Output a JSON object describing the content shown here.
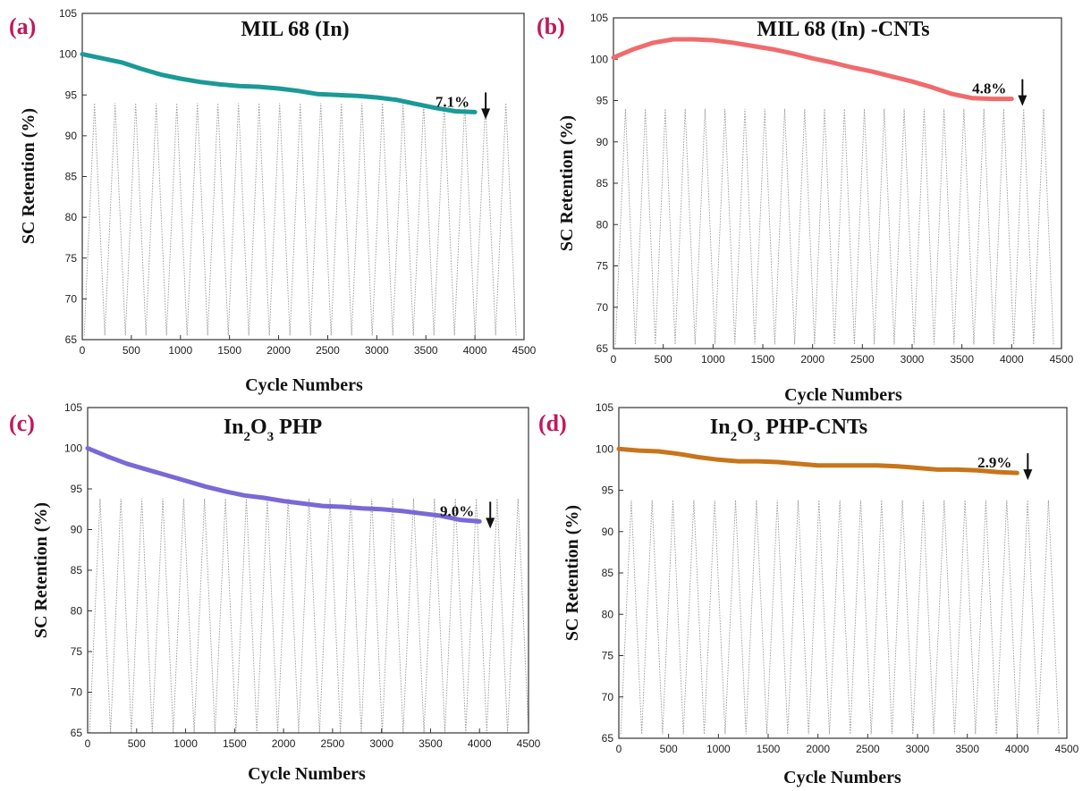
{
  "figure": {
    "panel_label_color": "#c2185b",
    "gcd_color": "#9a9a9a"
  },
  "chart_data": [
    {
      "type": "line",
      "panel_label": "(a)",
      "title": "MIL 68 (In)",
      "title_sub": "",
      "title_suffix": "",
      "xlabel": "Cycle Numbers",
      "ylabel": "SC Retention (%)",
      "xlim": [
        0,
        4500
      ],
      "ylim": [
        65,
        105
      ],
      "xticks": [
        0,
        500,
        1000,
        1500,
        2000,
        2500,
        3000,
        3500,
        4000,
        4500
      ],
      "yticks": [
        65,
        70,
        75,
        80,
        85,
        90,
        95,
        100,
        105
      ],
      "grid": false,
      "series": [
        {
          "color": "#1a9a96",
          "x": [
            0,
            200,
            400,
            600,
            800,
            1000,
            1200,
            1400,
            1600,
            1800,
            2000,
            2200,
            2400,
            2600,
            2800,
            3000,
            3200,
            3400,
            3600,
            3800,
            4000
          ],
          "y": [
            100.0,
            99.5,
            99.0,
            98.2,
            97.5,
            97.0,
            96.6,
            96.3,
            96.1,
            96.0,
            95.8,
            95.5,
            95.1,
            95.0,
            94.9,
            94.7,
            94.4,
            93.9,
            93.4,
            93.0,
            92.9
          ]
        }
      ],
      "annotation": {
        "text": "7.1%",
        "x": 4000,
        "y": 92.9
      },
      "gcd": {
        "cycles": 21,
        "x_start": 20,
        "x_end": 4420,
        "y_low": 65.5,
        "y_high": 94
      }
    },
    {
      "type": "line",
      "panel_label": "(b)",
      "title": "MIL 68 (In) -CNTs",
      "title_sub": "",
      "title_suffix": "",
      "xlabel": "Cycle Numbers",
      "ylabel": "SC Retention (%)",
      "xlim": [
        0,
        4500
      ],
      "ylim": [
        65,
        105
      ],
      "xticks": [
        0,
        500,
        1000,
        1500,
        2000,
        2500,
        3000,
        3500,
        4000,
        4500
      ],
      "yticks": [
        65,
        70,
        75,
        80,
        85,
        90,
        95,
        100,
        105
      ],
      "grid": false,
      "series": [
        {
          "color": "#f06b6b",
          "x": [
            0,
            200,
            400,
            600,
            800,
            1000,
            1200,
            1400,
            1600,
            1800,
            2000,
            2200,
            2400,
            2600,
            2800,
            3000,
            3200,
            3400,
            3600,
            3800,
            4000
          ],
          "y": [
            100.2,
            101.2,
            102.0,
            102.4,
            102.4,
            102.3,
            102.0,
            101.6,
            101.2,
            100.7,
            100.1,
            99.6,
            99.0,
            98.5,
            97.9,
            97.3,
            96.6,
            95.8,
            95.3,
            95.2,
            95.2
          ]
        }
      ],
      "annotation": {
        "text": "4.8%",
        "x": 4000,
        "y": 95.2
      },
      "gcd": {
        "cycles": 22,
        "x_start": 20,
        "x_end": 4420,
        "y_low": 65.5,
        "y_high": 94
      }
    },
    {
      "type": "line",
      "panel_label": "(c)",
      "title": "In",
      "title_sub": "2",
      "title_mid": "O",
      "title_sub2": "3",
      "title_suffix": " PHP",
      "xlabel": "Cycle Numbers",
      "ylabel": "SC Retention (%)",
      "xlim": [
        0,
        4500
      ],
      "ylim": [
        65,
        105
      ],
      "xticks": [
        0,
        500,
        1000,
        1500,
        2000,
        2500,
        3000,
        3500,
        4000,
        4500
      ],
      "yticks": [
        65,
        70,
        75,
        80,
        85,
        90,
        95,
        100,
        105
      ],
      "grid": false,
      "series": [
        {
          "color": "#7b68d6",
          "x": [
            0,
            200,
            400,
            600,
            800,
            1000,
            1200,
            1400,
            1600,
            1800,
            2000,
            2200,
            2400,
            2600,
            2800,
            3000,
            3200,
            3400,
            3600,
            3800,
            4000
          ],
          "y": [
            100.0,
            99.0,
            98.1,
            97.4,
            96.7,
            96.0,
            95.3,
            94.7,
            94.2,
            93.9,
            93.5,
            93.2,
            92.9,
            92.8,
            92.6,
            92.5,
            92.3,
            92.0,
            91.7,
            91.2,
            91.0
          ]
        }
      ],
      "annotation": {
        "text": "9.0%",
        "x": 4000,
        "y": 91.0
      },
      "gcd": {
        "cycles": 21,
        "x_start": 20,
        "x_end": 4500,
        "y_low": 65,
        "y_high": 93.8
      }
    },
    {
      "type": "line",
      "panel_label": "(d)",
      "title": "In",
      "title_sub": "2",
      "title_mid": "O",
      "title_sub2": "3",
      "title_suffix": " PHP-CNTs",
      "xlabel": "Cycle Numbers",
      "ylabel": "SC Retention (%)",
      "xlim": [
        0,
        4500
      ],
      "ylim": [
        65,
        105
      ],
      "xticks": [
        0,
        500,
        1000,
        1500,
        2000,
        2500,
        3000,
        3500,
        4000,
        4500
      ],
      "yticks": [
        65,
        70,
        75,
        80,
        85,
        90,
        95,
        100,
        105
      ],
      "grid": false,
      "series": [
        {
          "color": "#c8741a",
          "x": [
            0,
            200,
            400,
            600,
            800,
            1000,
            1200,
            1400,
            1600,
            1800,
            2000,
            2200,
            2400,
            2600,
            2800,
            3000,
            3200,
            3400,
            3600,
            3800,
            4000
          ],
          "y": [
            100.0,
            99.8,
            99.7,
            99.4,
            99.0,
            98.7,
            98.5,
            98.5,
            98.4,
            98.2,
            98.0,
            98.0,
            98.0,
            98.0,
            97.9,
            97.7,
            97.5,
            97.5,
            97.4,
            97.2,
            97.1
          ]
        }
      ],
      "annotation": {
        "text": "2.9%",
        "x": 4000,
        "y": 97.1
      },
      "gcd": {
        "cycles": 21,
        "x_start": 20,
        "x_end": 4420,
        "y_low": 65.5,
        "y_high": 93.8
      }
    }
  ]
}
